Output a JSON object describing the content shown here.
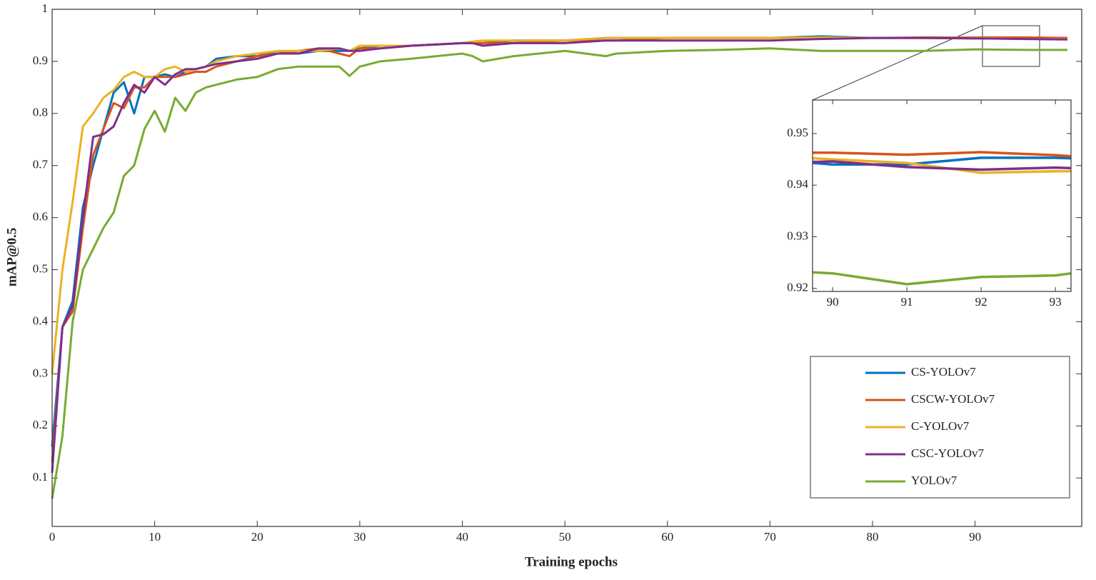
{
  "chart_data": [
    {
      "type": "line",
      "xlabel": "Training epochs",
      "ylabel": "mAP@0.5",
      "x": [
        0,
        1,
        2,
        3,
        4,
        5,
        6,
        7,
        8,
        9,
        10,
        11,
        12,
        13,
        14,
        15,
        16,
        18,
        20,
        22,
        24,
        26,
        28,
        29,
        30,
        32,
        35,
        40,
        41,
        42,
        45,
        50,
        54,
        55,
        60,
        65,
        70,
        75,
        80,
        85,
        90,
        95,
        99
      ],
      "xlim": [
        0,
        100.4
      ],
      "ylim": [
        0.007,
        1
      ],
      "xticks": [
        0,
        10,
        20,
        30,
        40,
        50,
        60,
        70,
        80,
        90
      ],
      "yticks": [
        0.1,
        0.2,
        0.3,
        0.4,
        0.5,
        0.6,
        0.7,
        0.8,
        0.9,
        1
      ],
      "legend": "southeast",
      "series": [
        {
          "name": "CS-YOLOv7",
          "color": "#0072bd",
          "values": [
            0.16,
            0.39,
            0.44,
            0.62,
            0.7,
            0.77,
            0.84,
            0.86,
            0.8,
            0.87,
            0.87,
            0.875,
            0.87,
            0.88,
            0.885,
            0.89,
            0.905,
            0.91,
            0.91,
            0.92,
            0.915,
            0.92,
            0.92,
            0.92,
            0.925,
            0.93,
            0.93,
            0.935,
            0.935,
            0.935,
            0.94,
            0.94,
            0.945,
            0.945,
            0.945,
            0.945,
            0.945,
            0.948,
            0.945,
            0.945,
            0.944,
            0.945,
            0.945
          ]
        },
        {
          "name": "CSCW-YOLOv7",
          "color": "#d95319",
          "values": [
            0.13,
            0.39,
            0.42,
            0.58,
            0.72,
            0.77,
            0.82,
            0.81,
            0.85,
            0.85,
            0.87,
            0.87,
            0.87,
            0.875,
            0.88,
            0.88,
            0.89,
            0.9,
            0.91,
            0.915,
            0.92,
            0.925,
            0.915,
            0.91,
            0.925,
            0.925,
            0.93,
            0.935,
            0.935,
            0.935,
            0.935,
            0.94,
            0.94,
            0.94,
            0.945,
            0.945,
            0.945,
            0.945,
            0.945,
            0.946,
            0.946,
            0.946,
            0.945
          ]
        },
        {
          "name": "C-YOLOv7",
          "color": "#edb120",
          "values": [
            0.3,
            0.5,
            0.63,
            0.775,
            0.8,
            0.83,
            0.845,
            0.87,
            0.88,
            0.87,
            0.87,
            0.885,
            0.89,
            0.88,
            0.885,
            0.89,
            0.9,
            0.91,
            0.915,
            0.92,
            0.92,
            0.92,
            0.925,
            0.92,
            0.93,
            0.93,
            0.93,
            0.935,
            0.938,
            0.94,
            0.94,
            0.94,
            0.945,
            0.945,
            0.945,
            0.945,
            0.945,
            0.946,
            0.945,
            0.945,
            0.945,
            0.943,
            0.943
          ]
        },
        {
          "name": "CSC-YOLOv7",
          "color": "#7e2f8e",
          "values": [
            0.11,
            0.39,
            0.43,
            0.6,
            0.755,
            0.76,
            0.775,
            0.82,
            0.855,
            0.84,
            0.87,
            0.855,
            0.875,
            0.885,
            0.885,
            0.89,
            0.895,
            0.9,
            0.905,
            0.915,
            0.915,
            0.925,
            0.925,
            0.92,
            0.92,
            0.925,
            0.93,
            0.935,
            0.935,
            0.93,
            0.935,
            0.935,
            0.94,
            0.94,
            0.94,
            0.94,
            0.94,
            0.943,
            0.945,
            0.945,
            0.944,
            0.943,
            0.942
          ]
        },
        {
          "name": "YOLOv7",
          "color": "#77ac30",
          "values": [
            0.06,
            0.18,
            0.4,
            0.5,
            0.54,
            0.58,
            0.61,
            0.68,
            0.7,
            0.77,
            0.805,
            0.765,
            0.83,
            0.805,
            0.84,
            0.85,
            0.855,
            0.865,
            0.87,
            0.885,
            0.89,
            0.89,
            0.89,
            0.872,
            0.89,
            0.9,
            0.905,
            0.915,
            0.91,
            0.9,
            0.91,
            0.92,
            0.91,
            0.915,
            0.92,
            0.922,
            0.925,
            0.92,
            0.92,
            0.92,
            0.923,
            0.922,
            0.922
          ]
        }
      ]
    },
    {
      "type": "line",
      "x": [
        89.73,
        90,
        91,
        92,
        93,
        93.21
      ],
      "xlim": [
        89.73,
        93.21
      ],
      "ylim": [
        0.9194,
        0.9565
      ],
      "xticks": [
        90,
        91,
        92,
        93
      ],
      "yticks": [
        0.92,
        0.93,
        0.94,
        0.95
      ],
      "series": [
        {
          "color": "#0072bd",
          "values": [
            0.9443,
            0.944,
            0.944,
            0.9453,
            0.9453,
            0.9452
          ]
        },
        {
          "color": "#d95319",
          "values": [
            0.9463,
            0.9463,
            0.9459,
            0.9464,
            0.9458,
            0.9456
          ]
        },
        {
          "color": "#edb120",
          "values": [
            0.9452,
            0.945,
            0.9443,
            0.9424,
            0.9427,
            0.9427
          ]
        },
        {
          "color": "#7e2f8e",
          "values": [
            0.9445,
            0.9446,
            0.9435,
            0.943,
            0.9434,
            0.9433
          ]
        },
        {
          "color": "#77ac30",
          "values": [
            0.9231,
            0.9229,
            0.9208,
            0.9222,
            0.9225,
            0.9229
          ]
        }
      ]
    }
  ]
}
